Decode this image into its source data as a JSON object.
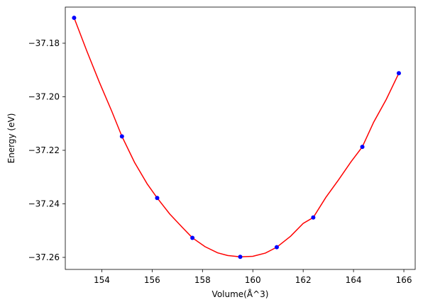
{
  "chart_data": {
    "type": "scatter",
    "title": "",
    "xlabel": "Volume(Å^3)",
    "ylabel": "Energy (eV)",
    "xlim": [
      152.55,
      166.45
    ],
    "ylim": [
      -37.2645,
      -37.1665
    ],
    "x_ticks": [
      154,
      156,
      158,
      160,
      162,
      164,
      166
    ],
    "x_tick_labels": [
      "154",
      "156",
      "158",
      "160",
      "162",
      "164",
      "166"
    ],
    "y_ticks": [
      -37.26,
      -37.24,
      -37.22,
      -37.2,
      -37.18
    ],
    "y_tick_labels": [
      "−37.26",
      "−37.24",
      "−37.22",
      "−37.20",
      "−37.18"
    ],
    "grid": false,
    "series": [
      {
        "kind": "points",
        "color": "#0000ff",
        "x": [
          152.9,
          154.8,
          156.2,
          157.6,
          159.5,
          160.95,
          162.4,
          164.35,
          165.8
        ],
        "y": [
          -37.1705,
          -37.2148,
          -37.2378,
          -37.2527,
          -37.2598,
          -37.2562,
          -37.2451,
          -37.2187,
          -37.1912
        ]
      },
      {
        "kind": "fit-curve",
        "color": "#ff0000",
        "x": [
          152.9,
          153.4,
          153.9,
          154.4,
          154.8,
          155.3,
          155.8,
          156.2,
          156.7,
          157.2,
          157.6,
          158.1,
          158.6,
          159.0,
          159.5,
          160.0,
          160.5,
          160.95,
          161.5,
          162.0,
          162.4,
          162.9,
          163.4,
          163.9,
          164.35,
          164.8,
          165.3,
          165.8
        ],
        "y": [
          -37.1705,
          -37.1828,
          -37.1945,
          -37.2055,
          -37.2148,
          -37.2245,
          -37.2325,
          -37.2378,
          -37.2438,
          -37.2488,
          -37.2527,
          -37.256,
          -37.2583,
          -37.2593,
          -37.2598,
          -37.2596,
          -37.2584,
          -37.2562,
          -37.2521,
          -37.2473,
          -37.2451,
          -37.2376,
          -37.2311,
          -37.2243,
          -37.2187,
          -37.2095,
          -37.201,
          -37.1912
        ]
      }
    ]
  }
}
